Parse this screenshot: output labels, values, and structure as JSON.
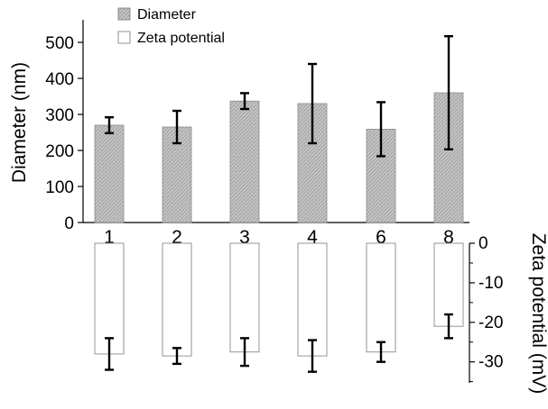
{
  "chart_data": [
    {
      "type": "bar",
      "categories": [
        "1",
        "2",
        "3",
        "4",
        "6",
        "8"
      ],
      "series": [
        {
          "name": "Diameter",
          "values": [
            270,
            265,
            337,
            330,
            259,
            360
          ],
          "error": [
            22,
            45,
            22,
            110,
            75,
            157
          ],
          "color": "#bdbdbd"
        }
      ],
      "ylabel": "Diameter (nm)",
      "ylim": [
        0,
        500
      ],
      "yticks": [
        0,
        100,
        200,
        300,
        400,
        500
      ],
      "legend": "top-left"
    },
    {
      "type": "bar",
      "categories": [
        "1",
        "2",
        "3",
        "4",
        "6",
        "8"
      ],
      "series": [
        {
          "name": "Zeta potential",
          "values": [
            -28,
            -28.5,
            -27.5,
            -28.5,
            -27.5,
            -21
          ],
          "error": [
            4,
            2,
            3.5,
            4,
            2.5,
            3
          ],
          "color": "#ffffff"
        }
      ],
      "ylabel": "Zeta potential (mV)",
      "ylim": [
        -35,
        0
      ],
      "yticks": [
        0,
        -10,
        -20,
        -30
      ],
      "axis_side": "right"
    }
  ]
}
